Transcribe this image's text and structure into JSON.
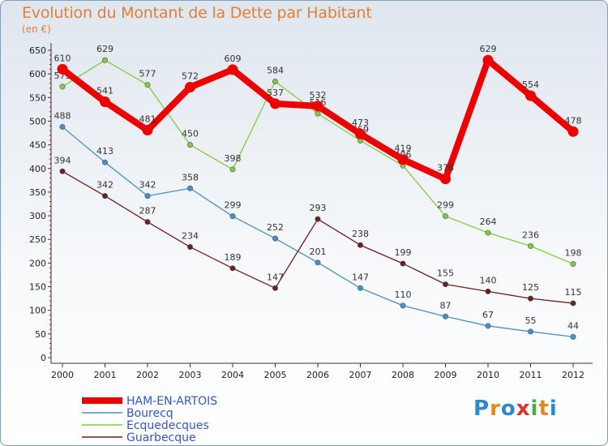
{
  "title": "Evolution du Montant de la Dette par Habitant",
  "subtitle": "(en €)",
  "logo": "Proxiti",
  "chart_data": {
    "type": "line",
    "title": "Evolution du Montant de la Dette par Habitant",
    "subtitle": "(en €)",
    "x": [
      "2000",
      "2001",
      "2002",
      "2003",
      "2004",
      "2005",
      "2006",
      "2007",
      "2008",
      "2009",
      "2010",
      "2011",
      "2012"
    ],
    "ylim": [
      0,
      650
    ],
    "yticks": [
      "0",
      "50",
      "100",
      "150",
      "200",
      "250",
      "300",
      "350",
      "400",
      "450",
      "500",
      "550",
      "600",
      "650"
    ],
    "grid": false,
    "legend_position": "bottom-left",
    "series": [
      {
        "name": "HAM-EN-ARTOIS",
        "color": "#ee0000",
        "values": [
          610,
          541,
          481,
          572,
          609,
          537,
          532,
          473,
          419,
          378,
          629,
          554,
          478
        ]
      },
      {
        "name": "Bourecq",
        "color": "#4a90c8",
        "values": [
          488,
          413,
          342,
          358,
          299,
          252,
          201,
          147,
          110,
          87,
          67,
          55,
          44
        ]
      },
      {
        "name": "Ecquedecques",
        "color": "#80cc40",
        "values": [
          573,
          629,
          577,
          450,
          398,
          584,
          516,
          459,
          406,
          299,
          264,
          236,
          198
        ]
      },
      {
        "name": "Guarbecque",
        "color": "#6b1f1f",
        "values": [
          394,
          342,
          287,
          234,
          189,
          147,
          293,
          238,
          199,
          155,
          140,
          125,
          115
        ]
      }
    ]
  }
}
